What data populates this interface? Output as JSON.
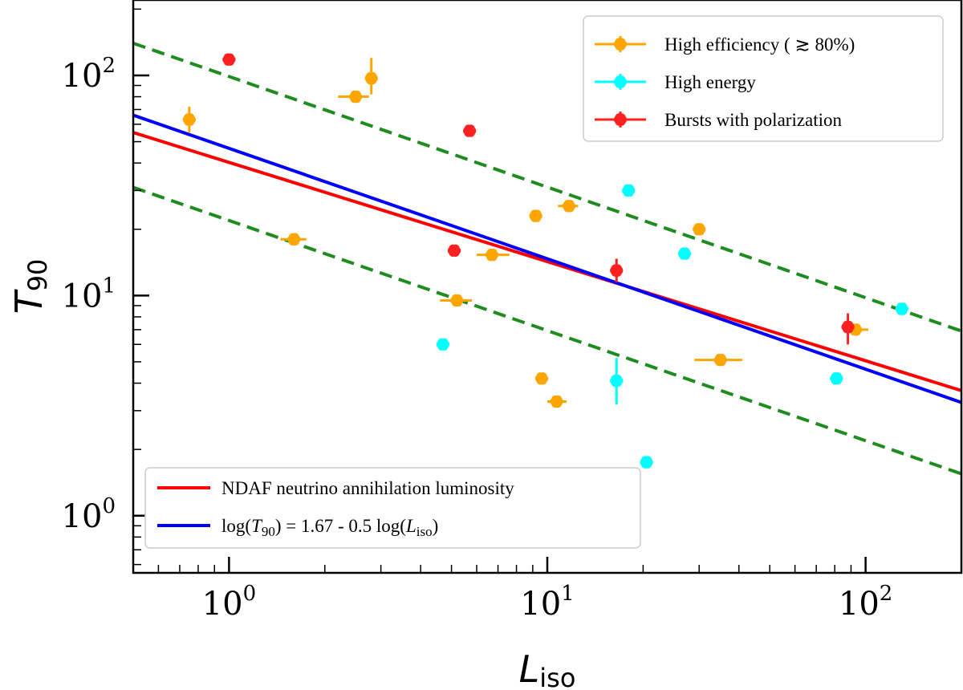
{
  "chart_data": {
    "type": "scatter",
    "x_scale": "log",
    "y_scale": "log",
    "xlim": [
      0.5,
      200
    ],
    "ylim": [
      0.55,
      220
    ],
    "xlabel": "L",
    "xlabel_sub": "iso",
    "ylabel": "T",
    "ylabel_sub": "90",
    "x_ticks": [
      {
        "value": 1,
        "base": "10",
        "exp": "0"
      },
      {
        "value": 10,
        "base": "10",
        "exp": "1"
      },
      {
        "value": 100,
        "base": "10",
        "exp": "2"
      }
    ],
    "y_ticks": [
      {
        "value": 1,
        "base": "10",
        "exp": "0"
      },
      {
        "value": 10,
        "base": "10",
        "exp": "1"
      },
      {
        "value": 100,
        "base": "10",
        "exp": "2"
      }
    ],
    "colors": {
      "high_efficiency": "#FFA500",
      "high_energy": "#00FFFF",
      "polarization": "#FF2020",
      "ndaf_line": "#FF0000",
      "fit_line": "#0000FF",
      "bounds": "#1E8C1E"
    },
    "series": [
      {
        "name": "High efficiency (≳ 80%)",
        "color": "#FFA500",
        "points": [
          {
            "x": 0.75,
            "y": 63,
            "yerr": [
              55,
              72
            ]
          },
          {
            "x": 2.5,
            "y": 80,
            "xerr": [
              2.2,
              2.75
            ]
          },
          {
            "x": 2.8,
            "y": 97,
            "yerr": [
              82,
              120
            ]
          },
          {
            "x": 1.6,
            "y": 18,
            "xerr": [
              1.45,
              1.75
            ]
          },
          {
            "x": 5.2,
            "y": 9.5,
            "xerr": [
              4.6,
              5.8
            ]
          },
          {
            "x": 6.7,
            "y": 15.3,
            "xerr": [
              6.0,
              7.6
            ]
          },
          {
            "x": 9.2,
            "y": 23
          },
          {
            "x": 11.7,
            "y": 25.5,
            "xerr": [
              10.8,
              12.5
            ]
          },
          {
            "x": 9.6,
            "y": 4.2
          },
          {
            "x": 10.7,
            "y": 3.3,
            "xerr": [
              10.0,
              11.5
            ]
          },
          {
            "x": 30,
            "y": 20
          },
          {
            "x": 35,
            "y": 5.1,
            "xerr": [
              29,
              41
            ]
          },
          {
            "x": 93,
            "y": 7.0,
            "xerr": [
              85,
              102
            ]
          }
        ]
      },
      {
        "name": "High energy",
        "color": "#00FFFF",
        "points": [
          {
            "x": 4.7,
            "y": 6.0
          },
          {
            "x": 16.5,
            "y": 4.1,
            "yerr": [
              3.2,
              5.2
            ]
          },
          {
            "x": 20.5,
            "y": 1.75
          },
          {
            "x": 18,
            "y": 30
          },
          {
            "x": 27,
            "y": 15.5
          },
          {
            "x": 81,
            "y": 4.2
          },
          {
            "x": 130,
            "y": 8.7
          }
        ]
      },
      {
        "name": "Bursts with polarization",
        "color": "#FF2020",
        "points": [
          {
            "x": 1.0,
            "y": 118
          },
          {
            "x": 5.7,
            "y": 56
          },
          {
            "x": 5.1,
            "y": 16
          },
          {
            "x": 16.5,
            "y": 13,
            "yerr": [
              11.5,
              14.7
            ]
          },
          {
            "x": 88,
            "y": 7.2,
            "yerr": [
              6.0,
              8.3
            ]
          }
        ]
      }
    ],
    "lines": [
      {
        "name": "NDAF neutrino annihilation luminosity",
        "color": "#FF0000",
        "style": "solid",
        "points": [
          [
            0.5,
            55
          ],
          [
            200,
            3.7
          ]
        ]
      },
      {
        "name": "log(T90) = 1.67 - 0.5 log(Liso)",
        "color": "#0000FF",
        "style": "solid",
        "points": [
          [
            0.5,
            66
          ],
          [
            200,
            3.27
          ]
        ]
      },
      {
        "name": "upper bound",
        "color": "#1E8C1E",
        "style": "dashed",
        "points": [
          [
            0.5,
            140
          ],
          [
            200,
            6.9
          ]
        ]
      },
      {
        "name": "lower bound",
        "color": "#1E8C1E",
        "style": "dashed",
        "points": [
          [
            0.5,
            31
          ],
          [
            200,
            1.55
          ]
        ]
      }
    ],
    "legend_top": {
      "position": "top-right",
      "entries": [
        {
          "label": "High efficiency ( ≳  80%)",
          "color": "#FFA500"
        },
        {
          "label": "High energy",
          "color": "#00FFFF"
        },
        {
          "label": "Bursts with polarization",
          "color": "#FF2020"
        }
      ]
    },
    "legend_bottom": {
      "position": "bottom-left",
      "entries": [
        {
          "label": "NDAF neutrino annihilation luminosity",
          "color": "#FF0000"
        },
        {
          "label_parts": [
            "log(",
            "T",
            "90",
            ") = 1.67 - 0.5 log(",
            "L",
            "iso",
            ")"
          ],
          "label_full": "log(T90) = 1.67 - 0.5 log(Liso)",
          "color": "#0000FF"
        }
      ]
    }
  }
}
